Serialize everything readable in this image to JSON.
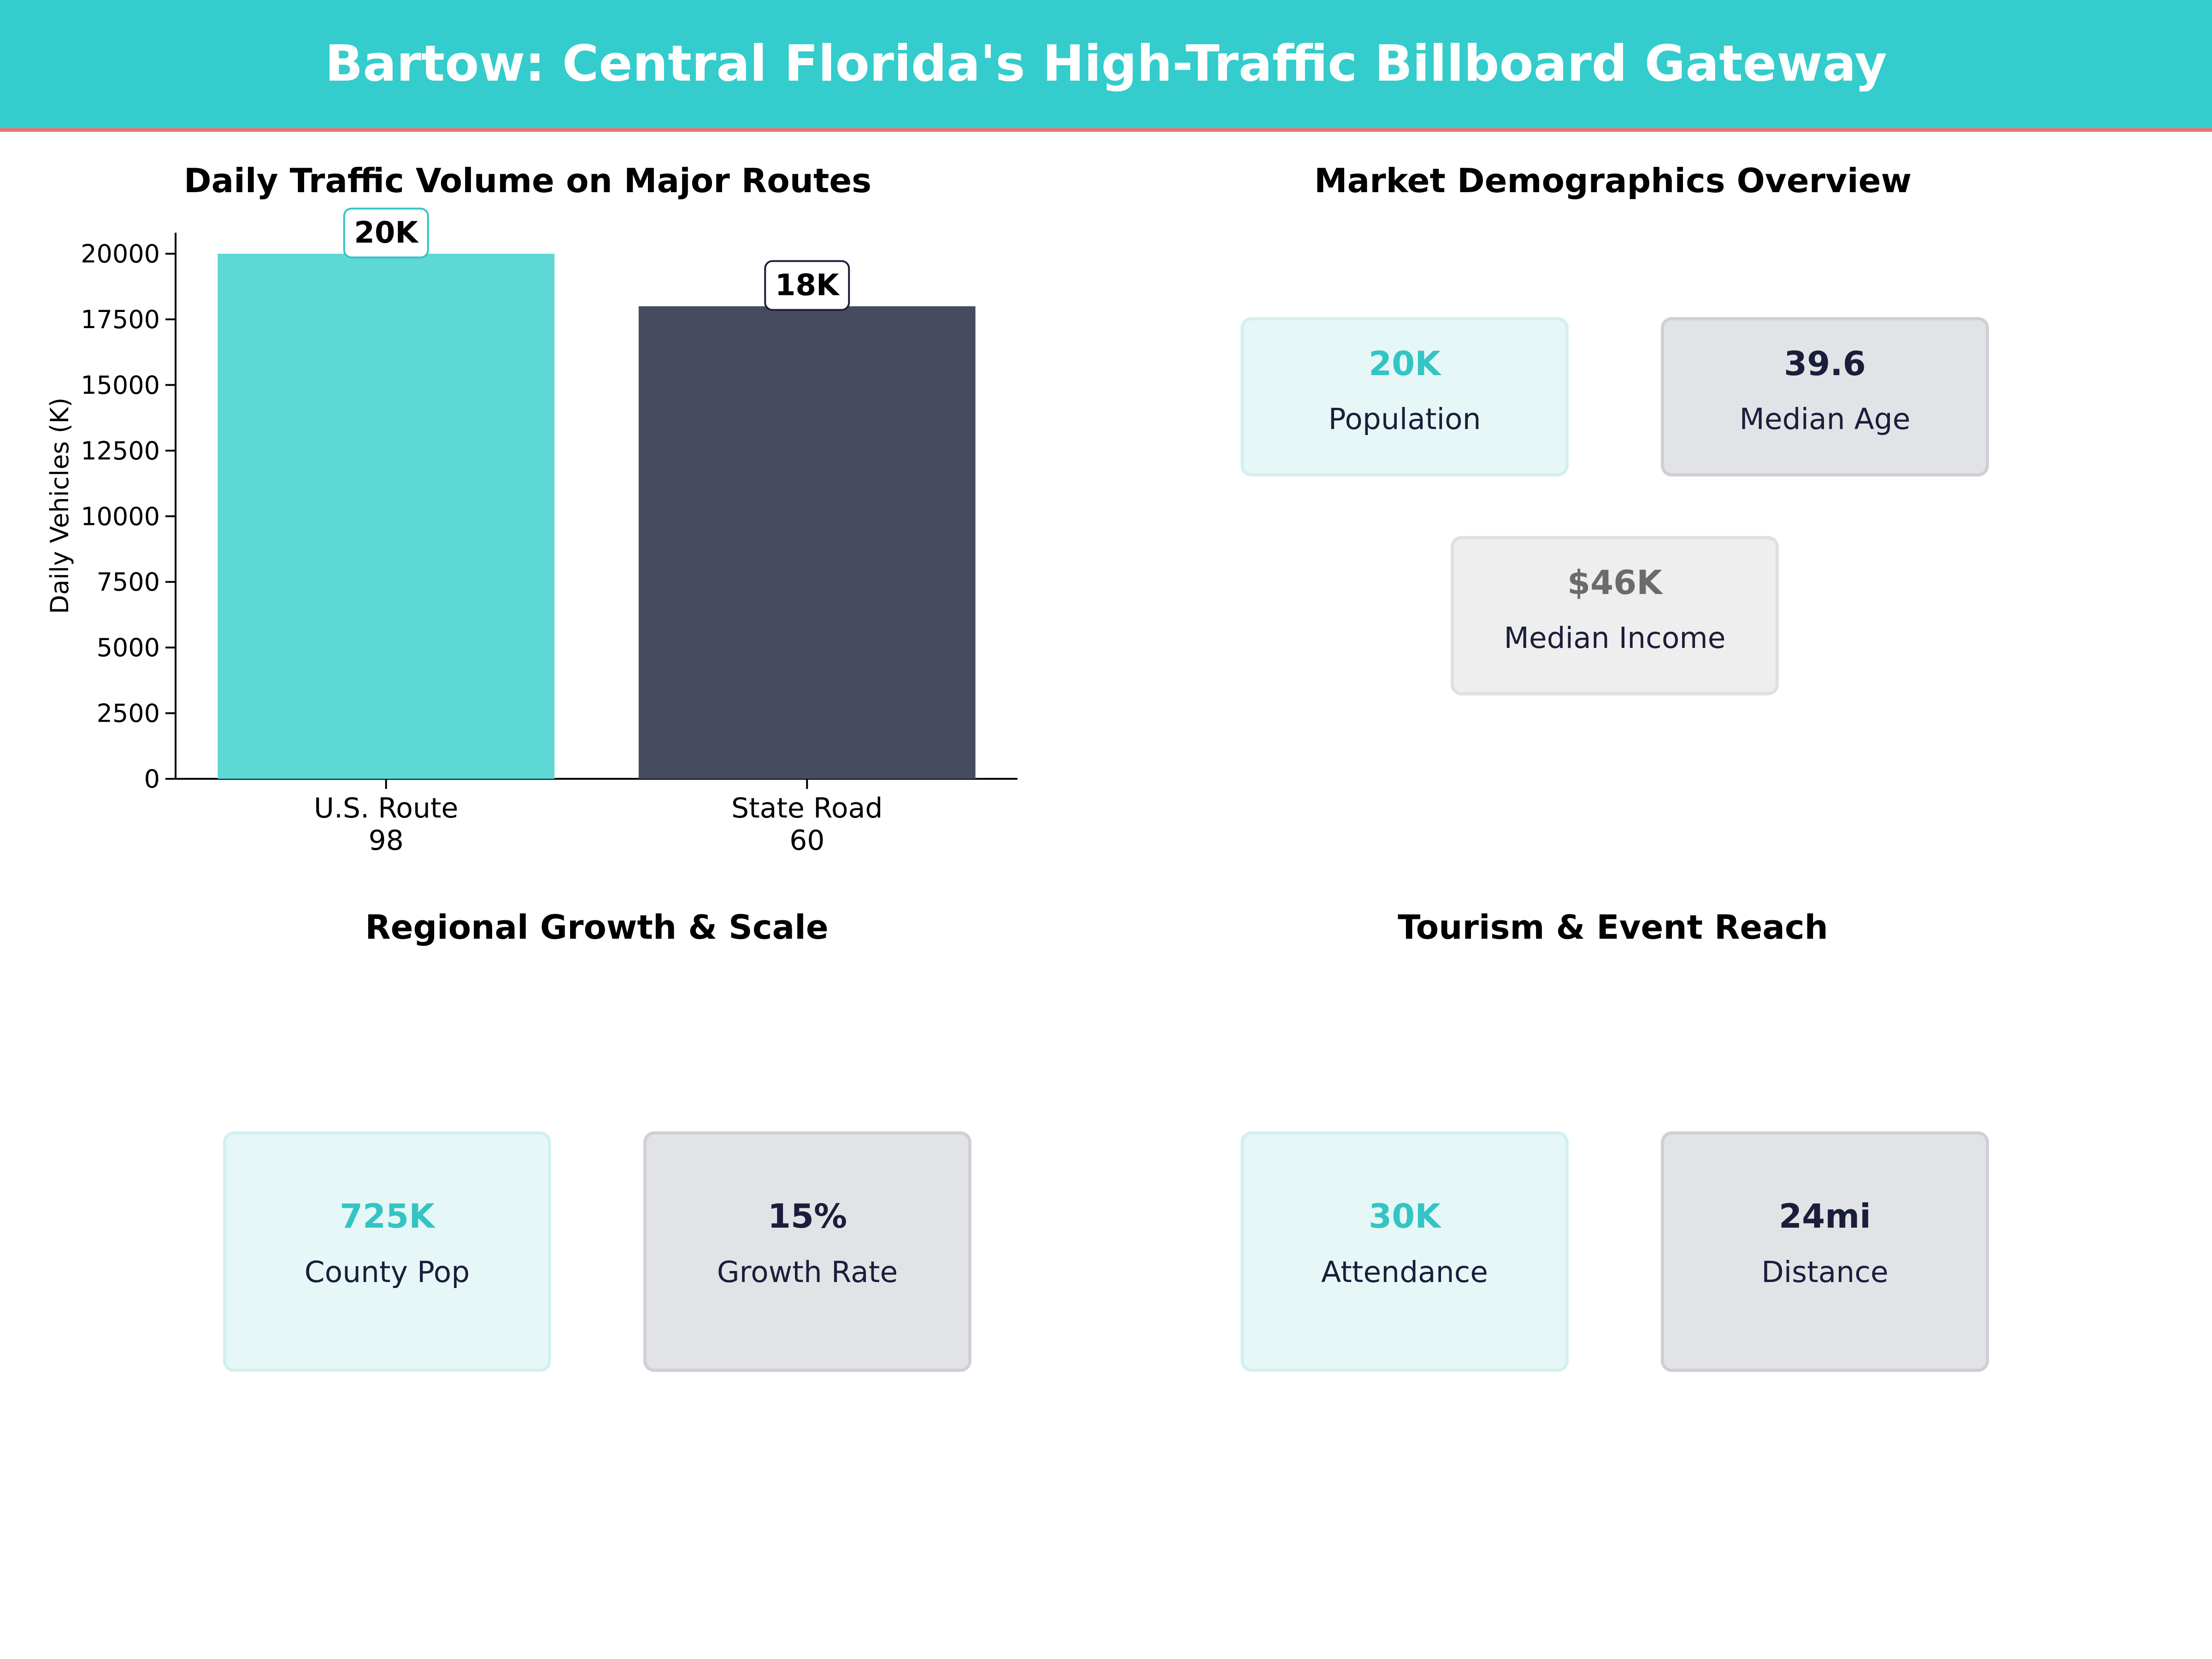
{
  "header": {
    "title": "Bartow: Central Florida's High-Traffic Billboard Gateway"
  },
  "traffic": {
    "title": "Daily Traffic Volume on Major Routes"
  },
  "chart_data": {
    "type": "bar",
    "title": "Daily Traffic Volume on Major Routes",
    "categories": [
      [
        "U.S. Route",
        "98"
      ],
      [
        "State Road",
        "60"
      ]
    ],
    "values": [
      20000,
      18000
    ],
    "data_labels": [
      "20K",
      "18K"
    ],
    "bar_colors": [
      "#5dd8d4",
      "#464b60"
    ],
    "label_border_colors": [
      "#34c4c4",
      "#1b1e3a"
    ],
    "xlabel": "",
    "ylabel": "Daily Vehicles (K)",
    "ylim": [
      0,
      20800
    ],
    "yticks": [
      0,
      2500,
      5000,
      7500,
      10000,
      12500,
      15000,
      17500,
      20000
    ],
    "grid": false,
    "legend": "none"
  },
  "demographics": {
    "title": "Market Demographics Overview",
    "cards": [
      {
        "value": "20K",
        "label": "Population"
      },
      {
        "value": "39.6",
        "label": "Median Age"
      },
      {
        "value": "$46K",
        "label": "Median Income"
      }
    ]
  },
  "growth": {
    "title": "Regional Growth & Scale",
    "cards": [
      {
        "value": "725K",
        "label": "County Pop"
      },
      {
        "value": "15%",
        "label": "Growth Rate"
      }
    ]
  },
  "tourism": {
    "title": "Tourism & Event Reach",
    "cards": [
      {
        "value": "30K",
        "label": "Attendance"
      },
      {
        "value": "24mi",
        "label": "Distance"
      }
    ]
  }
}
